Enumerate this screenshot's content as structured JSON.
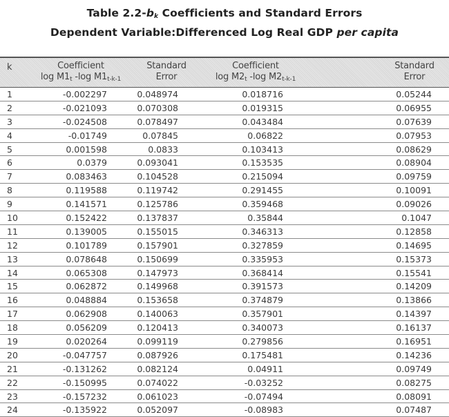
{
  "title": {
    "prefix": "Table 2.2-",
    "b": "b",
    "k": "k",
    "suffix": " Coefficients and Standard Errors"
  },
  "subtitle": {
    "main": "Dependent Variable:Differenced Log Real GDP ",
    "italic": "per capita"
  },
  "headers": {
    "k": "k",
    "coef1_line1": "Coefficient",
    "coef1_line2_a": "log M1",
    "coef1_sub_a": "t",
    "coef1_line2_b": " -log M1",
    "coef1_sub_b": "t-k-1",
    "se1_line1": "Standard",
    "se1_line2": "Error",
    "coef2_line1": "Coefficient",
    "coef2_line2_a": "log M2",
    "coef2_sub_a": "t",
    "coef2_line2_b": " -log M2",
    "coef2_sub_b": "t-k-1",
    "se2_line1": "Standard",
    "se2_line2": "Error"
  },
  "rows": [
    [
      "1",
      "-0.002297",
      "0.048974",
      "0.018716",
      "0.05244"
    ],
    [
      "2",
      "-0.021093",
      "0.070308",
      "0.019315",
      "0.06955"
    ],
    [
      "3",
      "-0.024508",
      "0.078497",
      "0.043484",
      "0.07639"
    ],
    [
      "4",
      "-0.01749",
      "0.07845",
      "0.06822",
      "0.07953"
    ],
    [
      "5",
      "0.001598",
      "0.0833",
      "0.103413",
      "0.08629"
    ],
    [
      "6",
      "0.0379",
      "0.093041",
      "0.153535",
      "0.08904"
    ],
    [
      "7",
      "0.083463",
      "0.104528",
      "0.215094",
      "0.09759"
    ],
    [
      "8",
      "0.119588",
      "0.119742",
      "0.291455",
      "0.10091"
    ],
    [
      "9",
      "0.141571",
      "0.125786",
      "0.359468",
      "0.09026"
    ],
    [
      "10",
      "0.152422",
      "0.137837",
      "0.35844",
      "0.1047"
    ],
    [
      "11",
      "0.139005",
      "0.155015",
      "0.346313",
      "0.12858"
    ],
    [
      "12",
      "0.101789",
      "0.157901",
      "0.327859",
      "0.14695"
    ],
    [
      "13",
      "0.078648",
      "0.150699",
      "0.335953",
      "0.15373"
    ],
    [
      "14",
      "0.065308",
      "0.147973",
      "0.368414",
      "0.15541"
    ],
    [
      "15",
      "0.062872",
      "0.149968",
      "0.391573",
      "0.14209"
    ],
    [
      "16",
      "0.048884",
      "0.153658",
      "0.374879",
      "0.13866"
    ],
    [
      "17",
      "0.062908",
      "0.140063",
      "0.357901",
      "0.14397"
    ],
    [
      "18",
      "0.056209",
      "0.120413",
      "0.340073",
      "0.16137"
    ],
    [
      "19",
      "0.020264",
      "0.099119",
      "0.279856",
      "0.16951"
    ],
    [
      "20",
      "-0.047757",
      "0.087926",
      "0.175481",
      "0.14236"
    ],
    [
      "21",
      "-0.131262",
      "0.082124",
      "0.04911",
      "0.09749"
    ],
    [
      "22",
      "-0.150995",
      "0.074022",
      "-0.03252",
      "0.08275"
    ],
    [
      "23",
      "-0.157232",
      "0.061023",
      "-0.07494",
      "0.08091"
    ],
    [
      "24",
      "-0.135922",
      "0.052097",
      "-0.08983",
      "0.07487"
    ]
  ]
}
